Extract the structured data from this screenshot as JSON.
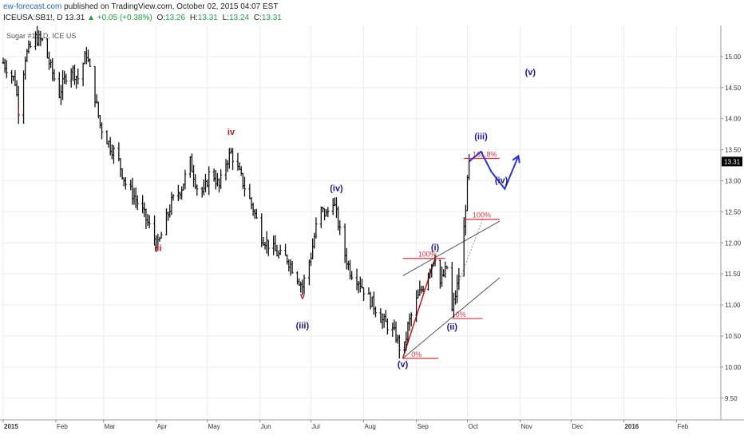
{
  "header": {
    "site": "ew-forecast.com",
    "published": "published on TradingView.com, October 02, 2015 04:07 EST",
    "symbol": "ICEUSA:SB1!, D",
    "last": "13.31",
    "up_arrow": "▲",
    "change": "+0.05 (+0.38%)",
    "o_label": "O:",
    "o_value": "13.26",
    "h_label": "H:",
    "h_value": "13.31",
    "l_label": "L:",
    "l_value": "13.24",
    "c_label": "C:",
    "c_value": "13.31"
  },
  "watermark": "Sugar #11, D, ICE US",
  "colors": {
    "bars": "#111111",
    "red_wave": "#b41e1e",
    "blue_wave": "#1a1a8c",
    "fib": "#e0303c",
    "projection": "#2a35d6",
    "channel": "#555555",
    "grid": "#eeeeee",
    "price_tag": "#000000"
  },
  "chart_data": {
    "type": "ohlc",
    "title": "Sugar #11, D, ICE US",
    "interval": "daily",
    "xlim": [
      "2015-01-01",
      "2016-03-01"
    ],
    "ylim": [
      9.15,
      15.5
    ],
    "y_ticks": [
      "15.00",
      "14.50",
      "14.00",
      "13.50",
      "13.00",
      "12.50",
      "12.00",
      "11.50",
      "11.00",
      "10.50",
      "10.00",
      "9.50"
    ],
    "x_ticks": [
      "2015",
      "Feb",
      "Mar",
      "Apr",
      "May",
      "Jun",
      "Jul",
      "Aug",
      "Sep",
      "Oct",
      "Nov",
      "Dec",
      "2016",
      "Feb"
    ],
    "x_tick_dates": [
      "2015-01-01",
      "2015-02-01",
      "2015-03-01",
      "2015-04-01",
      "2015-05-01",
      "2015-06-01",
      "2015-07-01",
      "2015-08-01",
      "2015-09-01",
      "2015-10-01",
      "2015-11-01",
      "2015-12-01",
      "2016-01-01",
      "2016-02-01"
    ],
    "last_price": "13.31",
    "price_path": [
      [
        "2015-01-01",
        14.9
      ],
      [
        "2015-01-05",
        14.75
      ],
      [
        "2015-01-08",
        14.6
      ],
      [
        "2015-01-10",
        14.15
      ],
      [
        "2015-01-14",
        15.0
      ],
      [
        "2015-01-20",
        15.3
      ],
      [
        "2015-01-24",
        15.25
      ],
      [
        "2015-01-28",
        14.9
      ],
      [
        "2015-02-03",
        14.4
      ],
      [
        "2015-02-09",
        14.85
      ],
      [
        "2015-02-14",
        14.65
      ],
      [
        "2015-02-19",
        15.05
      ],
      [
        "2015-02-23",
        14.5
      ],
      [
        "2015-02-27",
        13.9
      ],
      [
        "2015-03-05",
        13.55
      ],
      [
        "2015-03-09",
        13.4
      ],
      [
        "2015-03-14",
        12.95
      ],
      [
        "2015-03-19",
        12.75
      ],
      [
        "2015-03-24",
        12.5
      ],
      [
        "2015-03-29",
        12.2
      ],
      [
        "2015-04-02",
        11.95
      ],
      [
        "2015-04-06",
        12.3
      ],
      [
        "2015-04-10",
        12.65
      ],
      [
        "2015-04-16",
        12.9
      ],
      [
        "2015-04-21",
        13.3
      ],
      [
        "2015-04-25",
        12.9
      ],
      [
        "2015-04-29",
        12.8
      ],
      [
        "2015-05-03",
        13.2
      ],
      [
        "2015-05-08",
        12.9
      ],
      [
        "2015-05-12",
        13.3
      ],
      [
        "2015-05-15",
        13.45
      ],
      [
        "2015-05-18",
        13.25
      ],
      [
        "2015-05-23",
        12.9
      ],
      [
        "2015-05-28",
        12.55
      ],
      [
        "2015-06-02",
        12.1
      ],
      [
        "2015-06-07",
        11.95
      ],
      [
        "2015-06-12",
        11.8
      ],
      [
        "2015-06-17",
        11.75
      ],
      [
        "2015-06-22",
        11.5
      ],
      [
        "2015-06-26",
        11.3
      ],
      [
        "2015-07-01",
        11.8
      ],
      [
        "2015-07-06",
        12.55
      ],
      [
        "2015-07-10",
        12.45
      ],
      [
        "2015-07-14",
        12.7
      ],
      [
        "2015-07-16",
        12.45
      ],
      [
        "2015-07-20",
        11.9
      ],
      [
        "2015-07-24",
        11.55
      ],
      [
        "2015-07-29",
        11.4
      ],
      [
        "2015-08-03",
        11.15
      ],
      [
        "2015-08-08",
        10.95
      ],
      [
        "2015-08-12",
        10.75
      ],
      [
        "2015-08-16",
        10.65
      ],
      [
        "2015-08-20",
        10.5
      ],
      [
        "2015-08-24",
        10.15
      ],
      [
        "2015-08-27",
        10.65
      ],
      [
        "2015-08-31",
        11.0
      ],
      [
        "2015-09-04",
        11.25
      ],
      [
        "2015-09-08",
        11.55
      ],
      [
        "2015-09-12",
        11.8
      ],
      [
        "2015-09-15",
        11.35
      ],
      [
        "2015-09-19",
        11.6
      ],
      [
        "2015-09-22",
        10.9
      ],
      [
        "2015-09-25",
        11.3
      ],
      [
        "2015-09-28",
        11.85
      ],
      [
        "2015-09-30",
        12.6
      ],
      [
        "2015-10-02",
        13.31
      ]
    ],
    "wave_labels_red": [
      {
        "label": "i",
        "date": "2015-01-10",
        "price": 14.07
      },
      {
        "label": "iv",
        "date": "2015-05-15",
        "price": 13.74
      },
      {
        "label": "iii",
        "date": "2015-04-02",
        "price": 11.87
      },
      {
        "label": "v",
        "date": "2015-06-26",
        "price": 11.1
      }
    ],
    "wave_labels_blue": [
      {
        "label": "(iv)",
        "date": "2015-07-16",
        "price": 12.83
      },
      {
        "label": "(iii)",
        "date": "2015-06-26",
        "price": 10.62
      },
      {
        "label": "(v)",
        "date": "2015-08-24",
        "price": 10.0
      },
      {
        "label": "(i)",
        "date": "2015-09-12",
        "price": 11.88
      },
      {
        "label": "(ii)",
        "date": "2015-09-22",
        "price": 10.6
      },
      {
        "label": "(iii)",
        "date": "2015-10-09",
        "price": 13.67
      },
      {
        "label": "(iv)",
        "date": "2015-10-21",
        "price": 12.96
      },
      {
        "label": "(v)",
        "date": "2015-11-07",
        "price": 14.7
      }
    ],
    "fib_levels": [
      {
        "label": "161.8%",
        "date_from": "2015-09-29",
        "date_to": "2015-10-20",
        "price": 13.36
      },
      {
        "label": "100%",
        "date_from": "2015-09-29",
        "date_to": "2015-10-20",
        "price": 12.38
      },
      {
        "label": "100%",
        "date_from": "2015-08-24",
        "date_to": "2015-09-18",
        "price": 11.75
      },
      {
        "label": "0%",
        "date_from": "2015-09-22",
        "date_to": "2015-10-10",
        "price": 10.78
      },
      {
        "label": "0%",
        "date_from": "2015-08-24",
        "date_to": "2015-09-14",
        "price": 10.14
      }
    ],
    "projection_path": [
      [
        "2015-10-02",
        13.31
      ],
      [
        "2015-10-09",
        13.47
      ],
      [
        "2015-10-15",
        13.15
      ],
      [
        "2015-10-23",
        12.87
      ],
      [
        "2015-10-31",
        13.4
      ]
    ],
    "channel_lines": [
      [
        [
          "2015-08-24",
          10.14
        ],
        [
          "2015-10-20",
          11.44
        ]
      ],
      [
        [
          "2015-08-24",
          11.47
        ],
        [
          "2015-10-20",
          12.35
        ]
      ]
    ],
    "guide_lines": [
      [
        [
          "2015-08-24",
          10.14
        ],
        [
          "2015-09-12",
          11.75
        ]
      ],
      [
        [
          "2015-09-25",
          11.3
        ],
        [
          "2015-10-10",
          12.38
        ]
      ]
    ]
  }
}
